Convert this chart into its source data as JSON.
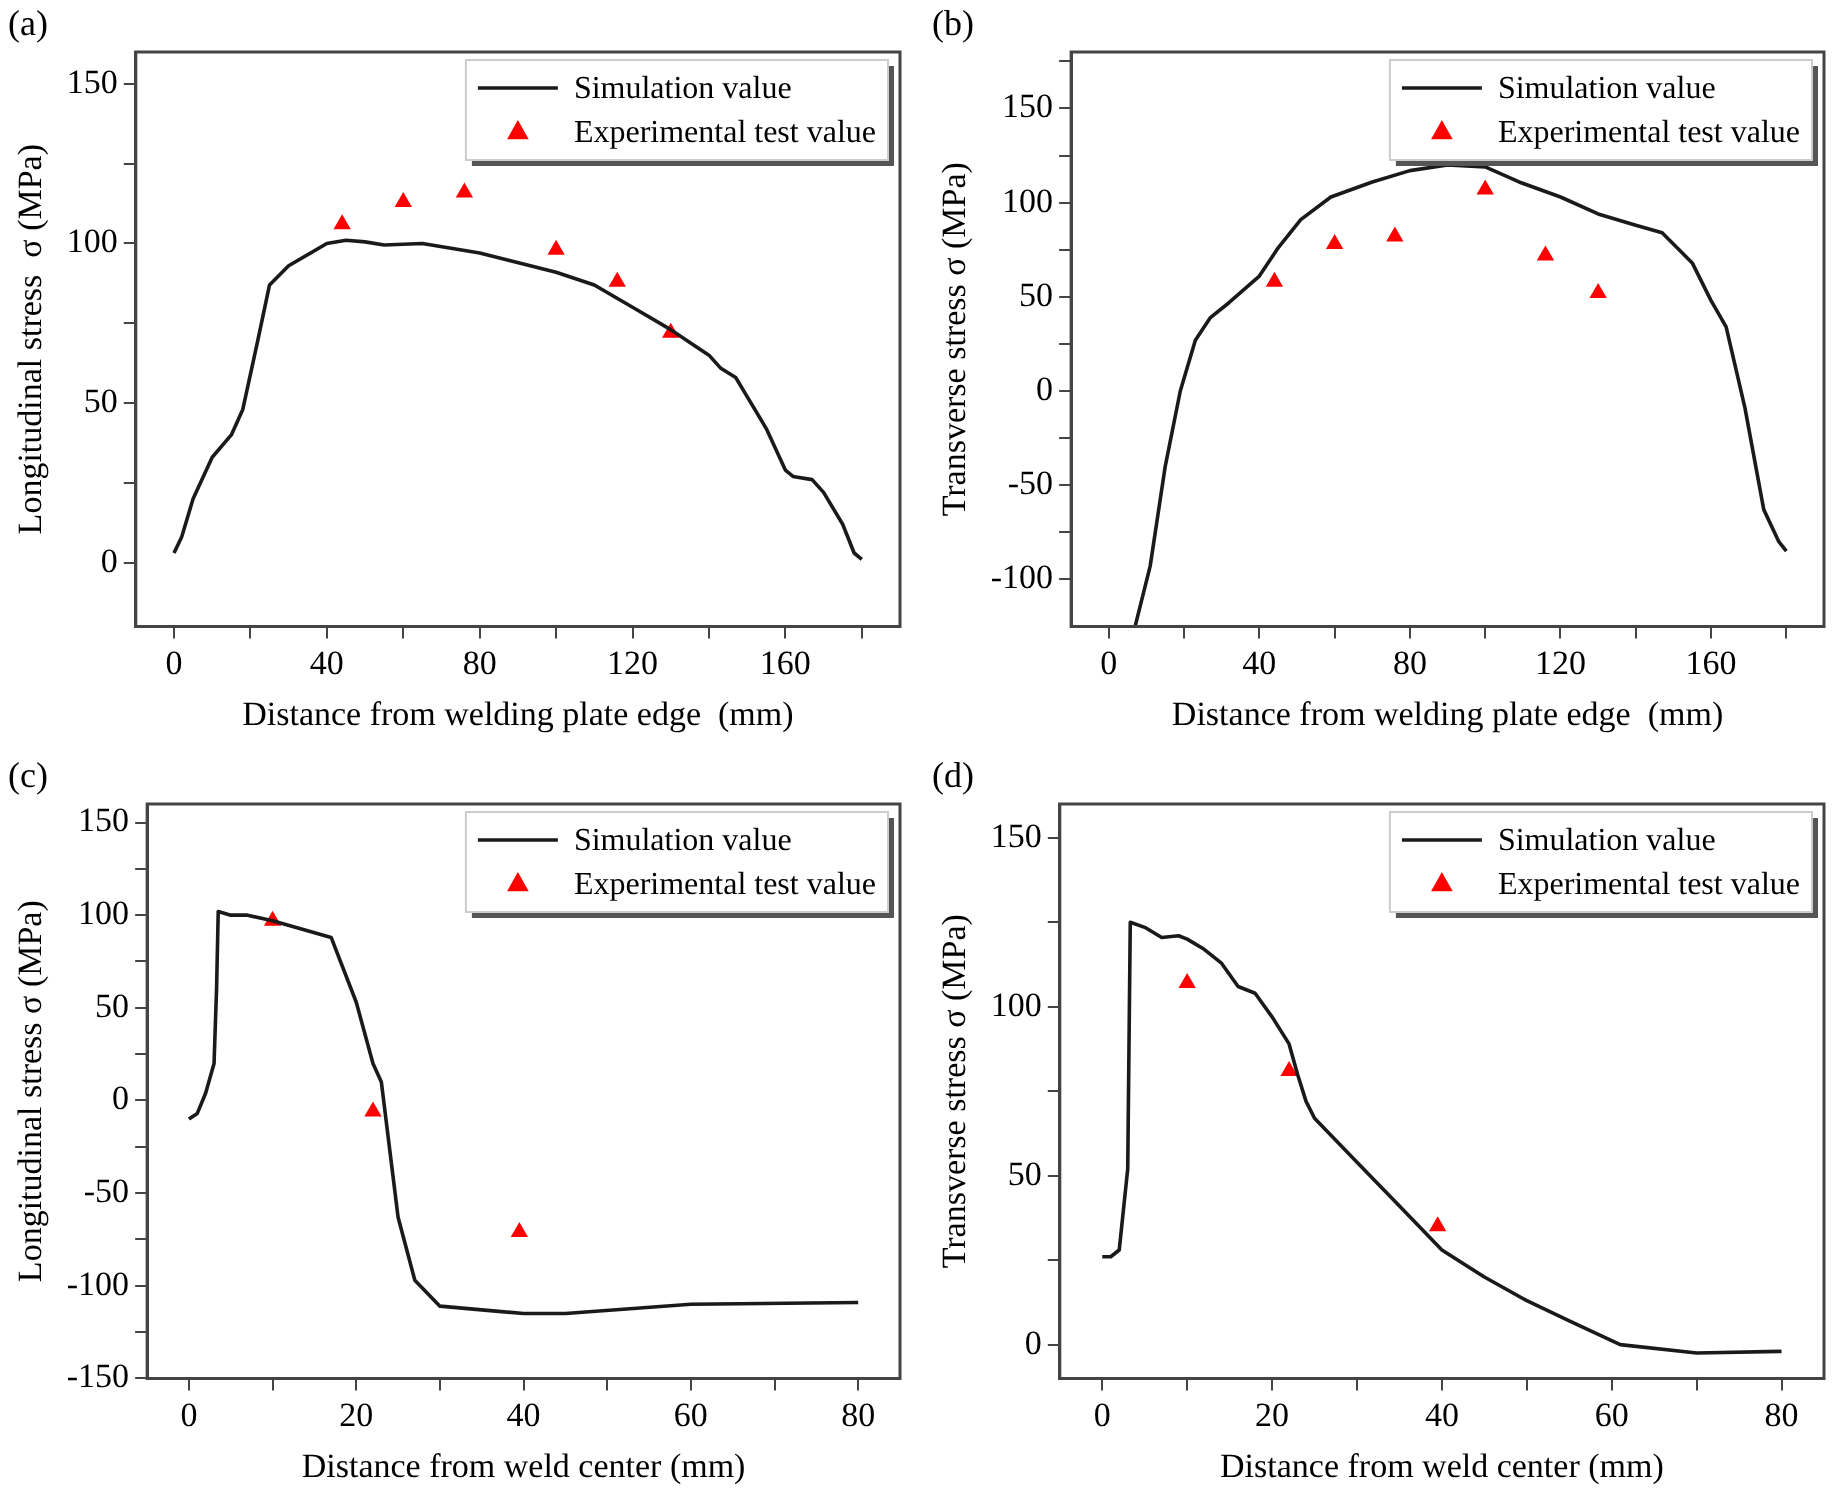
{
  "chart_data": [
    {
      "type": "line",
      "title": "(a)",
      "xlabel": "Distance from welding plate edge  (mm)",
      "ylabel": "Longitudinal stress  σ (MPa)",
      "xlim": [
        -10,
        190
      ],
      "ylim": [
        -20,
        160
      ],
      "xticks": [
        0,
        {
          "value": 20,
          "label": null
        },
        40,
        {
          "value": 60,
          "label": null
        },
        80,
        {
          "value": 100,
          "label": null
        },
        120,
        {
          "value": 140,
          "label": null
        },
        160,
        {
          "value": 180,
          "label": null
        }
      ],
      "yticks": [
        0,
        {
          "value": 25,
          "label": null
        },
        50,
        {
          "value": 75,
          "label": null
        },
        100,
        {
          "value": 125,
          "label": null
        },
        150
      ],
      "legend": "top right",
      "series": [
        {
          "name": "Simulation value",
          "type": "line",
          "color": "#1a1a1a",
          "marker": "none",
          "line_style": "solid",
          "x": [
            0,
            2,
            5,
            10,
            15,
            18,
            22,
            25,
            30,
            40,
            45,
            50,
            55,
            65,
            80,
            100,
            110,
            120,
            130,
            135,
            140,
            143,
            147,
            150,
            155,
            160,
            162,
            167,
            170,
            175,
            178,
            180
          ],
          "values": [
            3,
            8,
            20,
            33,
            40,
            48,
            70,
            87,
            93,
            100,
            101,
            100.5,
            99.5,
            100,
            97,
            91,
            87,
            80,
            73,
            69,
            65,
            61,
            58,
            52,
            42,
            29,
            27,
            26,
            22,
            12,
            3,
            1
          ]
        },
        {
          "name": "Experimental test value",
          "type": "scatter",
          "color": "#ff0000",
          "marker": "triangle",
          "x": [
            44,
            60,
            76,
            100,
            116,
            130
          ],
          "values": [
            106,
            113,
            116,
            98,
            88,
            72
          ]
        }
      ]
    },
    {
      "type": "line",
      "title": "(b)",
      "xlabel": "Distance from welding plate edge  (mm)",
      "ylabel": "Transverse stress σ (MPa)",
      "xlim": [
        -10,
        190
      ],
      "ylim": [
        -125,
        180
      ],
      "xticks": [
        0,
        {
          "value": 20,
          "label": null
        },
        40,
        {
          "value": 60,
          "label": null
        },
        80,
        {
          "value": 100,
          "label": null
        },
        120,
        {
          "value": 140,
          "label": null
        },
        160,
        {
          "value": 180,
          "label": null
        }
      ],
      "yticks": [
        -100,
        {
          "value": -75,
          "label": null
        },
        -50,
        {
          "value": -25,
          "label": null
        },
        0,
        {
          "value": 25,
          "label": null
        },
        50,
        {
          "value": 75,
          "label": null
        },
        100,
        {
          "value": 125,
          "label": null
        },
        150,
        {
          "value": 175,
          "label": null
        }
      ],
      "legend": "top right",
      "series": [
        {
          "name": "Simulation value",
          "type": "line",
          "color": "#1a1a1a",
          "marker": "none",
          "line_style": "solid",
          "x": [
            7,
            11,
            15,
            19,
            23,
            27,
            32,
            40,
            45,
            51,
            59,
            70,
            80,
            90,
            100,
            109,
            120,
            130,
            140,
            147,
            155,
            160,
            164,
            169,
            174,
            178,
            180
          ],
          "values": [
            -125,
            -93,
            -40,
            0,
            27,
            39,
            47,
            61,
            76,
            91,
            103,
            111,
            117,
            120,
            119,
            111,
            103,
            94,
            88,
            84,
            68,
            48,
            34,
            -9,
            -63,
            -80,
            -85
          ]
        },
        {
          "name": "Experimental test value",
          "type": "scatter",
          "color": "#ff0000",
          "marker": "triangle",
          "x": [
            44,
            60,
            76,
            100,
            116,
            130
          ],
          "values": [
            58,
            78,
            82,
            107,
            72,
            52
          ]
        }
      ]
    },
    {
      "type": "line",
      "title": "(c)",
      "xlabel": "Distance from weld center (mm)",
      "ylabel": "Longitudinal stress σ (MPa)",
      "xlim": [
        -5,
        85
      ],
      "ylim": [
        -150,
        160
      ],
      "xticks": [
        0,
        {
          "value": 10,
          "label": null
        },
        20,
        {
          "value": 30,
          "label": null
        },
        40,
        {
          "value": 50,
          "label": null
        },
        60,
        {
          "value": 70,
          "label": null
        },
        80
      ],
      "yticks": [
        -150,
        {
          "value": -125,
          "label": null
        },
        -100,
        {
          "value": -75,
          "label": null
        },
        -50,
        {
          "value": -25,
          "label": null
        },
        0,
        {
          "value": 25,
          "label": null
        },
        50,
        {
          "value": 75,
          "label": null
        },
        100,
        {
          "value": 125,
          "label": null
        },
        150
      ],
      "legend": "top right",
      "series": [
        {
          "name": "Simulation value",
          "type": "line",
          "color": "#1a1a1a",
          "marker": "none",
          "line_style": "solid",
          "x": [
            0,
            1,
            2,
            3,
            3.3,
            3.5,
            5,
            7,
            10,
            17,
            20,
            22,
            23,
            25,
            27,
            30,
            35,
            40,
            45,
            60,
            80
          ],
          "values": [
            -10,
            -7,
            4,
            20,
            60,
            102,
            100,
            100,
            97,
            88,
            53,
            20,
            10,
            -63,
            -97,
            -111,
            -113,
            -115,
            -115,
            -110,
            -109
          ]
        },
        {
          "name": "Experimental test value",
          "type": "scatter",
          "color": "#ff0000",
          "marker": "triangle",
          "x": [
            10,
            22,
            39.5
          ],
          "values": [
            97,
            -6,
            -71
          ]
        }
      ]
    },
    {
      "type": "line",
      "title": "(d)",
      "xlabel": "Distance from weld center (mm)",
      "ylabel": "Transverse stress σ (MPa)",
      "xlim": [
        -5,
        85
      ],
      "ylim": [
        -10,
        160
      ],
      "xticks": [
        0,
        {
          "value": 10,
          "label": null
        },
        20,
        {
          "value": 30,
          "label": null
        },
        40,
        {
          "value": 50,
          "label": null
        },
        60,
        {
          "value": 70,
          "label": null
        },
        80
      ],
      "yticks": [
        0,
        {
          "value": 25,
          "label": null
        },
        50,
        {
          "value": 75,
          "label": null
        },
        100,
        {
          "value": 125,
          "label": null
        },
        150
      ],
      "legend": "top right",
      "series": [
        {
          "name": "Simulation value",
          "type": "line",
          "color": "#1a1a1a",
          "marker": "none",
          "line_style": "solid",
          "x": [
            0,
            1,
            2,
            3,
            3.3,
            5,
            7,
            9,
            10,
            12,
            14,
            16,
            18,
            20,
            22,
            23,
            24,
            25,
            30,
            35,
            40,
            45,
            50,
            55,
            61,
            70,
            80
          ],
          "values": [
            26,
            26,
            28,
            52,
            125,
            123.5,
            120.5,
            121,
            120,
            117,
            113,
            106,
            104,
            97,
            89,
            80,
            72,
            67,
            54,
            41,
            28,
            20,
            13,
            7,
            0,
            -2.5,
            -2
          ]
        },
        {
          "name": "Experimental test value",
          "type": "scatter",
          "color": "#ff0000",
          "marker": "triangle",
          "x": [
            10,
            22,
            39.5
          ],
          "values": [
            107,
            81,
            35
          ]
        }
      ]
    }
  ]
}
